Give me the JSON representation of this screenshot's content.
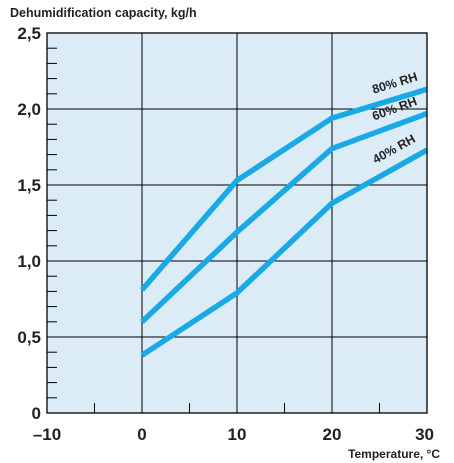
{
  "chart_data": {
    "type": "line",
    "title": "Dehumidification capacity, kg/h",
    "xlabel": "Temperature, °C",
    "ylabel": "",
    "xlim": [
      -10,
      30
    ],
    "ylim": [
      0,
      2.5
    ],
    "x_ticks": [
      -10,
      0,
      10,
      20,
      30
    ],
    "x_tick_labels": [
      "–10",
      "0",
      "10",
      "20",
      "30"
    ],
    "y_ticks": [
      0,
      0.5,
      1.0,
      1.5,
      2.0,
      2.5
    ],
    "y_tick_labels": [
      "0",
      "0,5",
      "1,0",
      "1,5",
      "2,0",
      "2,5"
    ],
    "grid": true,
    "series": [
      {
        "name": "80% RH",
        "x": [
          0,
          10,
          20,
          30
        ],
        "y": [
          0.81,
          1.53,
          1.94,
          2.13
        ]
      },
      {
        "name": "60% RH",
        "x": [
          0,
          10,
          20,
          30
        ],
        "y": [
          0.6,
          1.19,
          1.74,
          1.97
        ]
      },
      {
        "name": "40% RH",
        "x": [
          0,
          10,
          20,
          30
        ],
        "y": [
          0.38,
          0.79,
          1.38,
          1.73
        ]
      }
    ],
    "colors": {
      "plot_background": "#dcecf7",
      "line": "#19a9e6",
      "frame": "#000000"
    }
  }
}
